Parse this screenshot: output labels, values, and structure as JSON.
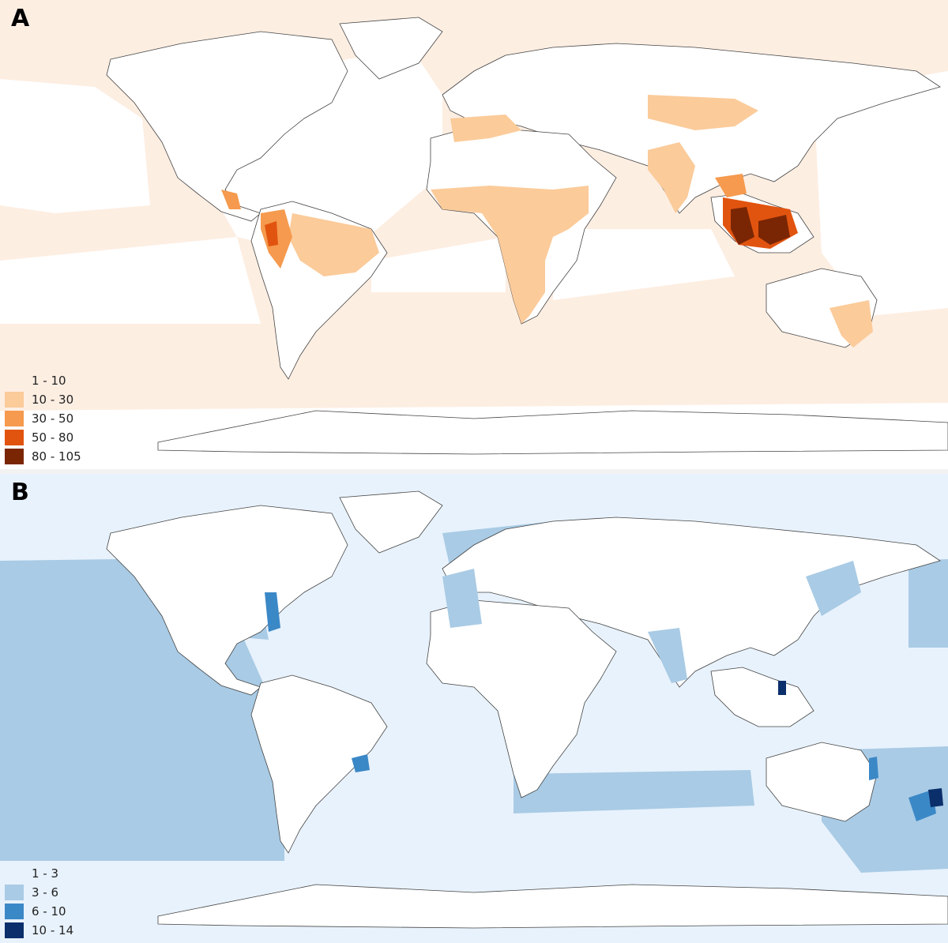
{
  "panels": [
    {
      "id": "A",
      "label": "A",
      "legend": [
        {
          "label": "1 - 10",
          "color": "#fdeee2"
        },
        {
          "label": "10 - 30",
          "color": "#fbcb9a"
        },
        {
          "label": "30 - 50",
          "color": "#f59a4e"
        },
        {
          "label": "50 - 80",
          "color": "#e1540f"
        },
        {
          "label": "80 - 105",
          "color": "#7a2604"
        }
      ]
    },
    {
      "id": "B",
      "label": "B",
      "legend": [
        {
          "label": "1 - 3",
          "color": "#e8f2fc"
        },
        {
          "label": "3 - 6",
          "color": "#a9cbe5"
        },
        {
          "label": "6 - 10",
          "color": "#3b88c7"
        },
        {
          "label": "10 - 14",
          "color": "#0b2f6b"
        }
      ]
    }
  ]
}
